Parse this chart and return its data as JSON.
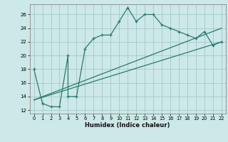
{
  "title": "",
  "xlabel": "Humidex (Indice chaleur)",
  "bg_color": "#cce8e8",
  "grid_color": "#aacccc",
  "line_color": "#2a7a6a",
  "xlim": [
    -0.5,
    22.5
  ],
  "ylim": [
    11.5,
    27.5
  ],
  "xticks": [
    0,
    1,
    2,
    3,
    4,
    5,
    6,
    7,
    8,
    9,
    10,
    11,
    12,
    13,
    14,
    15,
    16,
    17,
    18,
    19,
    20,
    21,
    22
  ],
  "xtick_labels": [
    "0",
    "1",
    "2",
    "3",
    "4",
    "5",
    "6",
    "7",
    "8",
    "9",
    "10",
    "11",
    "12",
    "13",
    "14",
    "15",
    "16",
    "17",
    "18",
    "19",
    "20",
    "21",
    "22"
  ],
  "yticks": [
    12,
    14,
    16,
    18,
    20,
    22,
    24,
    26
  ],
  "main_x": [
    0,
    1,
    2,
    3,
    4,
    4,
    5,
    6,
    7,
    8,
    9,
    10,
    11,
    12,
    13,
    14,
    15,
    16,
    17,
    18,
    19,
    20,
    21,
    22
  ],
  "main_y": [
    18,
    13,
    12.5,
    12.5,
    20,
    14,
    14,
    21,
    22.5,
    23,
    23,
    25,
    27,
    25,
    26,
    26,
    24.5,
    24,
    23.5,
    23,
    22.5,
    23.5,
    21.5,
    22
  ],
  "line1_x": [
    0,
    22
  ],
  "line1_y": [
    13.5,
    24
  ],
  "line2_x": [
    0,
    22
  ],
  "line2_y": [
    13.5,
    22
  ]
}
